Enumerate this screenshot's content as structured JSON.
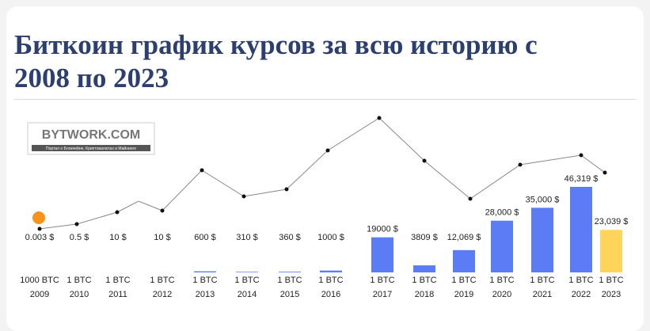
{
  "header": {
    "title_lines": [
      "Биткоин график курсов за всю историю с",
      "2008 по 2023"
    ]
  },
  "logo": {
    "name": "BYTWORK.COM",
    "tagline": "Портал о Блокчейне, Криптовалютах и Майнинге"
  },
  "chart_data": {
    "type": "bar",
    "categories": [
      "2009",
      "2010",
      "2011",
      "2012",
      "2013",
      "2014",
      "2015",
      "2016",
      "2017",
      "2018",
      "2019",
      "2020",
      "2021",
      "2022",
      "2023"
    ],
    "values": [
      0.003,
      0.5,
      10,
      10,
      600,
      310,
      360,
      1000,
      19000,
      3809,
      12069,
      28000,
      35000,
      46319,
      23039
    ],
    "value_labels": [
      "0.003 $",
      "0.5 $",
      "10 $",
      "10 $",
      "600 $",
      "310 $",
      "360 $",
      "1000 $",
      "19000 $",
      "3809 $",
      "12,069 $",
      "28,000 $",
      "35,000 $",
      "46,319 $",
      "23,039 $"
    ],
    "units": [
      "1000 BTC",
      "1 BTC",
      "1 BTC",
      "1 BTC",
      "1 BTC",
      "1 BTC",
      "1 BTC",
      "1 BTC",
      "1 BTC",
      "1 BTC",
      "1 BTC",
      "1 BTC",
      "1 BTC",
      "1 BTC",
      "1 BTC"
    ],
    "colors": [
      "#5b7cf4",
      "#5b7cf4",
      "#5b7cf4",
      "#5b7cf4",
      "#5b7cf4",
      "#5b7cf4",
      "#5b7cf4",
      "#5b7cf4",
      "#5b7cf4",
      "#5b7cf4",
      "#5b7cf4",
      "#5b7cf4",
      "#5b7cf4",
      "#5b7cf4",
      "#ffd45a"
    ]
  }
}
